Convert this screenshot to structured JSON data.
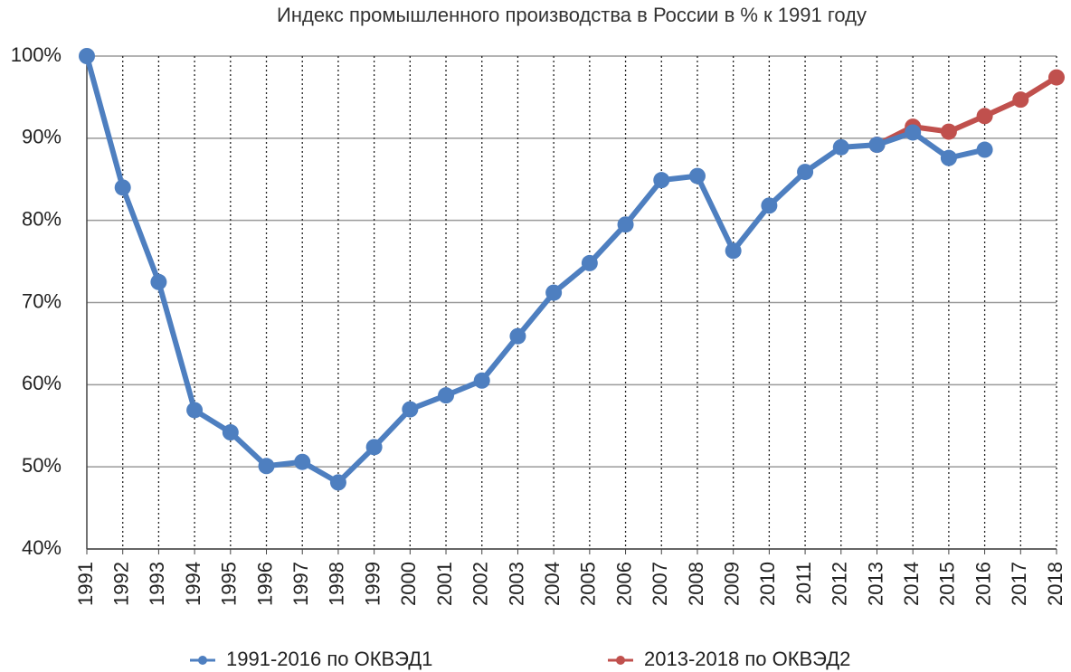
{
  "chart_data": {
    "type": "line",
    "title": "Индекс промышленного производства в России в % к 1991 году",
    "categories": [
      "1991",
      "1992",
      "1993",
      "1994",
      "1995",
      "1996",
      "1997",
      "1998",
      "1999",
      "2000",
      "2001",
      "2002",
      "2003",
      "2004",
      "2005",
      "2006",
      "2007",
      "2008",
      "2009",
      "2010",
      "2011",
      "2012",
      "2013",
      "2014",
      "2015",
      "2016",
      "2017",
      "2018"
    ],
    "series": [
      {
        "name": "1991-2016 по ОКВЭД1",
        "color": "#4e7fc0",
        "values": [
          100,
          84,
          72.5,
          56.9,
          54.2,
          50.1,
          50.6,
          48.1,
          52.4,
          57.0,
          58.7,
          60.5,
          65.9,
          71.2,
          74.8,
          79.5,
          84.9,
          85.4,
          76.3,
          81.8,
          85.9,
          88.9,
          89.2,
          90.7,
          87.6,
          88.6,
          null,
          null
        ]
      },
      {
        "name": "2013-2018 по ОКВЭД2",
        "color": "#c0504d",
        "values": [
          null,
          null,
          null,
          null,
          null,
          null,
          null,
          null,
          null,
          null,
          null,
          null,
          null,
          null,
          null,
          null,
          null,
          null,
          null,
          null,
          null,
          null,
          89.2,
          91.4,
          90.8,
          92.7,
          94.7,
          97.4
        ]
      }
    ],
    "ylim": [
      40,
      100
    ],
    "yticks": [
      {
        "value": 40,
        "label": "40%"
      },
      {
        "value": 50,
        "label": "50%"
      },
      {
        "value": 60,
        "label": "60%"
      },
      {
        "value": 70,
        "label": "70%"
      },
      {
        "value": 80,
        "label": "80%"
      },
      {
        "value": 90,
        "label": "90%"
      },
      {
        "value": 100,
        "label": "100%"
      }
    ],
    "grid": true,
    "legend": "bottom"
  }
}
